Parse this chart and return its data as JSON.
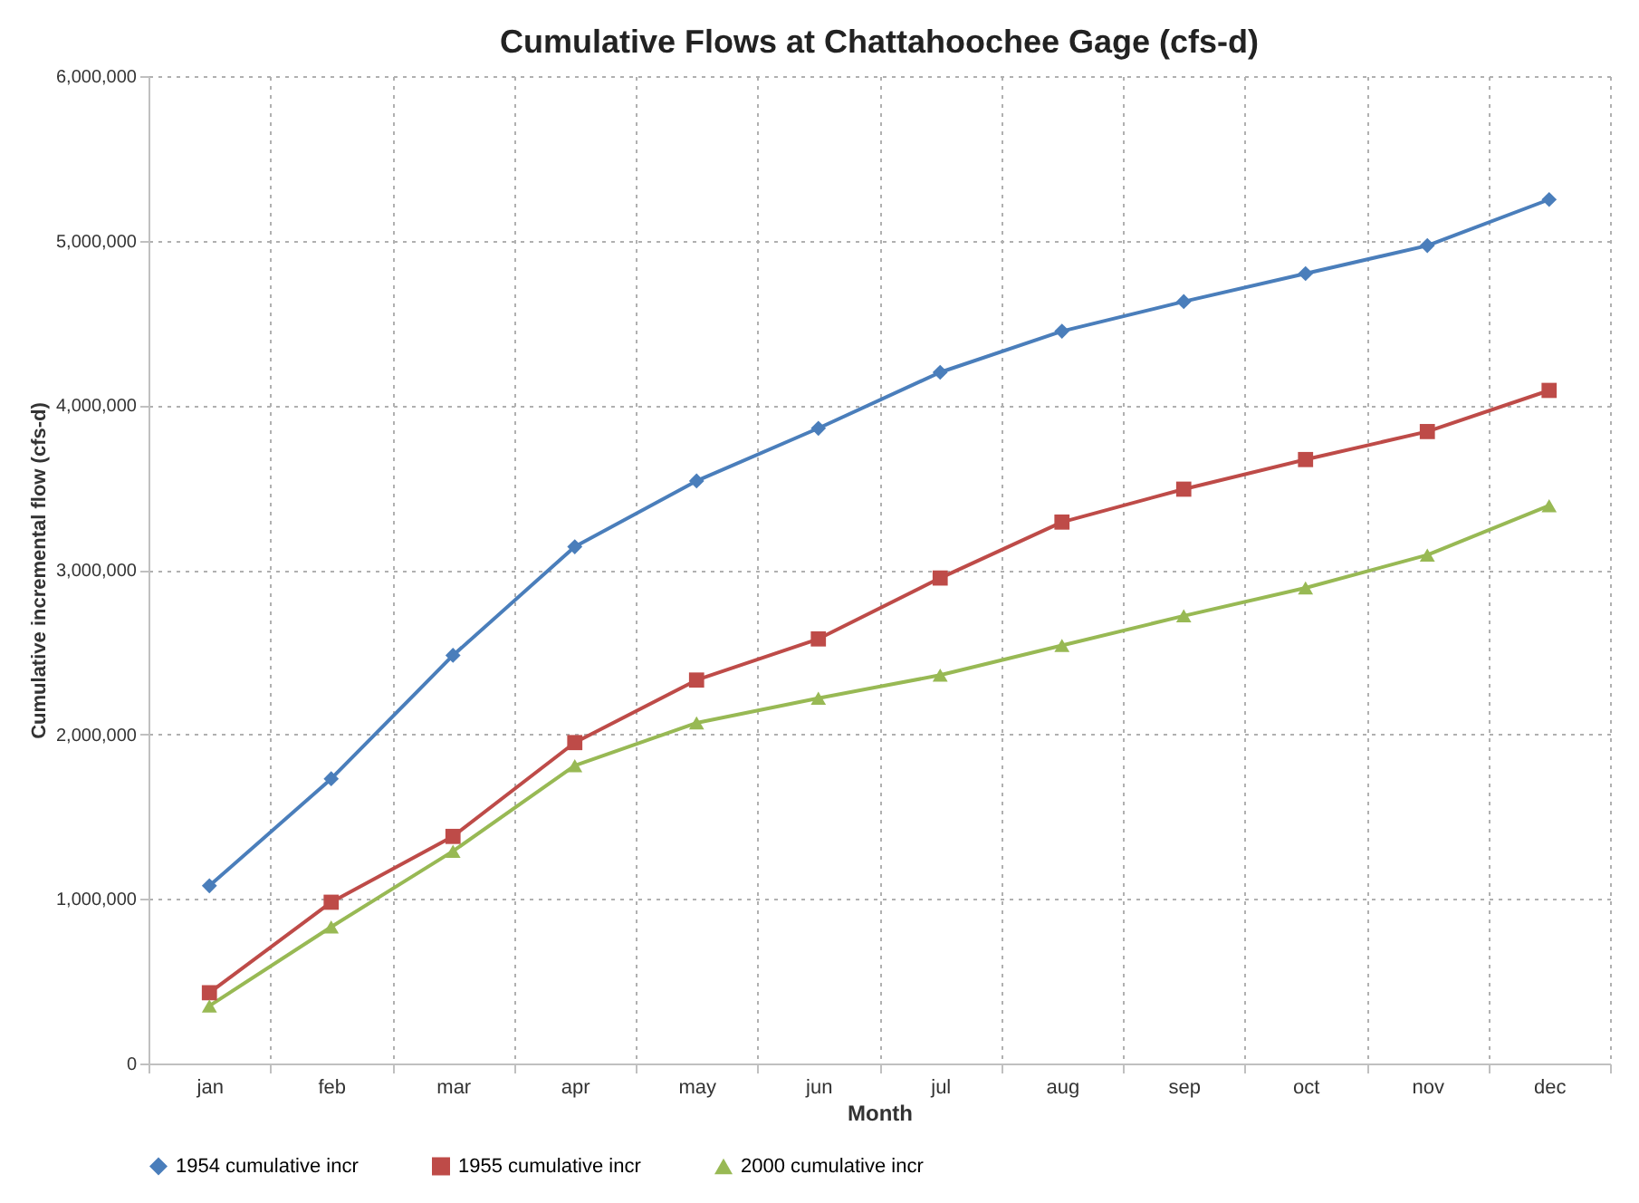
{
  "chart_data": {
    "type": "line",
    "title": "Cumulative Flows at Chattahoochee Gage (cfs-d)",
    "xlabel": "Month",
    "ylabel": "Cumulative incremental flow (cfs-d)",
    "categories": [
      "jan",
      "feb",
      "mar",
      "apr",
      "may",
      "jun",
      "jul",
      "aug",
      "sep",
      "oct",
      "nov",
      "dec"
    ],
    "series": [
      {
        "name": "1954 cumulative incr",
        "color": "#4a7ebb",
        "marker": "diamond",
        "values": [
          1080000,
          1730000,
          2480000,
          3140000,
          3540000,
          3860000,
          4200000,
          4450000,
          4630000,
          4800000,
          4970000,
          5250000
        ]
      },
      {
        "name": "1955 cumulative incr",
        "color": "#be4b48",
        "marker": "square",
        "values": [
          430000,
          980000,
          1380000,
          1950000,
          2330000,
          2580000,
          2950000,
          3290000,
          3490000,
          3670000,
          3840000,
          4090000
        ]
      },
      {
        "name": "2000 cumulative incr",
        "color": "#98b954",
        "marker": "triangle",
        "values": [
          350000,
          830000,
          1290000,
          1810000,
          2070000,
          2220000,
          2360000,
          2540000,
          2720000,
          2890000,
          3090000,
          3390000
        ]
      }
    ],
    "ylim": [
      0,
      6000000
    ],
    "yticks": [
      0,
      {
        "value": 1000000,
        "label": "1,000,000"
      },
      {
        "value": 2000000,
        "label": "2,000,000"
      },
      {
        "value": 3000000,
        "label": "3,000,000"
      },
      {
        "value": 4000000,
        "label": "4,000,000"
      },
      {
        "value": 5000000,
        "label": "5,000,000"
      },
      {
        "value": 6000000,
        "label": "6,000,000"
      }
    ],
    "grid": true,
    "legend": "bottom",
    "line_style": "solid"
  }
}
